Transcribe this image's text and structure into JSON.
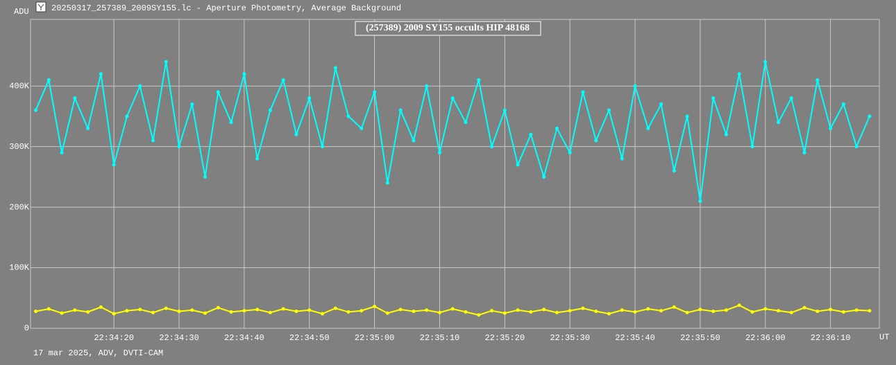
{
  "window_title": "20250317_257389_2009SY155.lc - Aperture Photometry, Average Background",
  "chart_data": {
    "type": "line",
    "title": "(257389) 2009 SY155 occults HIP 48168",
    "y_label": "ADU",
    "x_label": "UT",
    "footer": "17 mar 2025, ADV, DVTI-CAM",
    "grid": true,
    "x": [
      81248,
      81250,
      81252,
      81254,
      81256,
      81258,
      81260,
      81262,
      81264,
      81266,
      81268,
      81270,
      81272,
      81274,
      81276,
      81278,
      81280,
      81282,
      81284,
      81286,
      81288,
      81290,
      81292,
      81294,
      81296,
      81298,
      81300,
      81302,
      81304,
      81306,
      81308,
      81310,
      81312,
      81314,
      81316,
      81318,
      81320,
      81322,
      81324,
      81326,
      81328,
      81330,
      81332,
      81334,
      81336,
      81338,
      81340,
      81342,
      81344,
      81346,
      81348,
      81350,
      81352,
      81354,
      81356,
      81358,
      81360,
      81362,
      81364,
      81366,
      81368,
      81370,
      81372,
      81374,
      81376
    ],
    "xlim": [
      81247.2,
      81377.5
    ],
    "xticks": [
      {
        "value": 81260,
        "label": "22:34:20"
      },
      {
        "value": 81270,
        "label": "22:34:30"
      },
      {
        "value": 81280,
        "label": "22:34:40"
      },
      {
        "value": 81290,
        "label": "22:34:50"
      },
      {
        "value": 81300,
        "label": "22:35:00"
      },
      {
        "value": 81310,
        "label": "22:35:10"
      },
      {
        "value": 81320,
        "label": "22:35:20"
      },
      {
        "value": 81330,
        "label": "22:35:30"
      },
      {
        "value": 81340,
        "label": "22:35:40"
      },
      {
        "value": 81350,
        "label": "22:35:50"
      },
      {
        "value": 81360,
        "label": "22:36:00"
      },
      {
        "value": 81370,
        "label": "22:36:10"
      }
    ],
    "ylim": [
      0,
      510000
    ],
    "yticks": [
      0,
      {
        "value": 100000,
        "label": "100K"
      },
      {
        "value": 200000,
        "label": "200K"
      },
      {
        "value": 300000,
        "label": "300K"
      },
      {
        "value": 400000,
        "label": "400K"
      }
    ],
    "series": [
      {
        "color": "#00ffff",
        "values": [
          360000,
          410000,
          290000,
          380000,
          330000,
          420000,
          270000,
          350000,
          400000,
          310000,
          440000,
          300000,
          370000,
          250000,
          390000,
          340000,
          420000,
          280000,
          360000,
          410000,
          320000,
          380000,
          300000,
          430000,
          350000,
          330000,
          390000,
          240000,
          360000,
          310000,
          400000,
          290000,
          380000,
          340000,
          410000,
          300000,
          360000,
          270000,
          320000,
          250000,
          330000,
          290000,
          390000,
          310000,
          360000,
          280000,
          400000,
          330000,
          370000,
          260000,
          350000,
          210000,
          380000,
          320000,
          420000,
          300000,
          440000,
          340000,
          380000,
          290000,
          410000,
          330000,
          370000,
          300000,
          350000
        ]
      },
      {
        "color": "#ffff00",
        "values": [
          28000,
          32000,
          25000,
          30000,
          27000,
          35000,
          24000,
          29000,
          31000,
          26000,
          33000,
          28000,
          30000,
          25000,
          34000,
          27000,
          29000,
          31000,
          26000,
          32000,
          28000,
          30000,
          24000,
          33000,
          27000,
          29000,
          36000,
          25000,
          31000,
          28000,
          30000,
          26000,
          32000,
          27000,
          22000,
          29000,
          25000,
          30000,
          27000,
          31000,
          26000,
          29000,
          33000,
          28000,
          24000,
          30000,
          27000,
          32000,
          29000,
          35000,
          26000,
          31000,
          28000,
          30000,
          38000,
          27000,
          32000,
          29000,
          26000,
          34000,
          28000,
          31000,
          27000,
          30000,
          29000
        ]
      }
    ]
  }
}
